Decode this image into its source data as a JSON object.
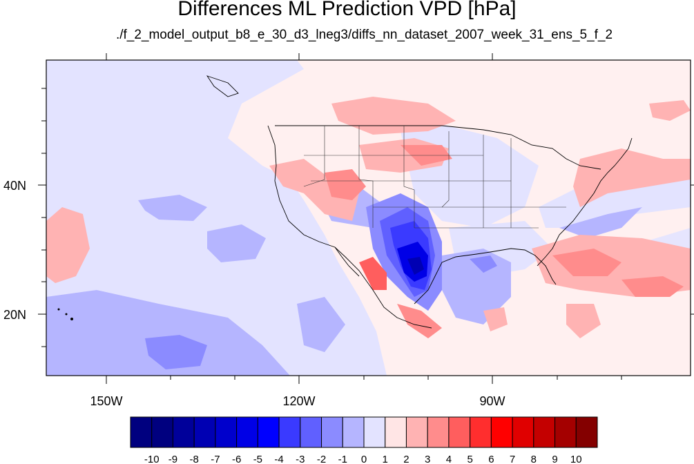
{
  "title": "Differences ML Prediction VPD [hPa]",
  "subtitle": "./f_2_model_output_b8_e_30_d3_lneg3/diffs_nn_dataset_2007_week_31_ens_5_f_2",
  "axes": {
    "longitude_ticks": [
      "150W",
      "120W",
      "90W"
    ],
    "latitude_ticks": [
      "40N",
      "20N"
    ]
  },
  "colorbar": {
    "labels": [
      "-10",
      "-9",
      "-8",
      "-7",
      "-6",
      "-5",
      "-4",
      "-3",
      "-2",
      "-1",
      "0",
      "1",
      "2",
      "3",
      "4",
      "5",
      "6",
      "7",
      "8",
      "9",
      "10"
    ],
    "colors": [
      "#00007f",
      "#00009a",
      "#0000b3",
      "#0000cc",
      "#0000e6",
      "#0000ff",
      "#3a3aff",
      "#6060ff",
      "#8b8bff",
      "#b5b5ff",
      "#e3e3ff",
      "#ffe5e5",
      "#ffb3b3",
      "#ff8c8c",
      "#ff5e5e",
      "#ff2e2e",
      "#ff0000",
      "#e00000",
      "#c40000",
      "#a40000",
      "#840000"
    ]
  }
}
